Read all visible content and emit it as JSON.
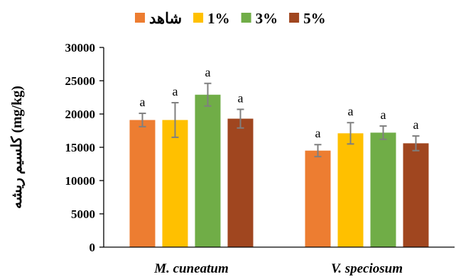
{
  "chart_data": {
    "type": "bar",
    "categories": [
      "M. cuneatum",
      "V. speciosum"
    ],
    "series": [
      {
        "name": "شاهد",
        "color": "#ED7D31",
        "values": [
          19100,
          14500
        ],
        "errors": [
          1000,
          900
        ],
        "labels": [
          "a",
          "a"
        ]
      },
      {
        "name": "1%",
        "color": "#FFC000",
        "values": [
          19100,
          17100
        ],
        "errors": [
          2600,
          1600
        ],
        "labels": [
          "a",
          "a"
        ]
      },
      {
        "name": "3%",
        "color": "#70AD47",
        "values": [
          22900,
          17200
        ],
        "errors": [
          1700,
          1000
        ],
        "labels": [
          "a",
          "a"
        ]
      },
      {
        "name": "5%",
        "color": "#A0461F",
        "values": [
          19300,
          15600
        ],
        "errors": [
          1400,
          1100
        ],
        "labels": [
          "a",
          "a"
        ]
      }
    ],
    "ylabel": "کلسیم ریشه (mg/kg)",
    "yticks": [
      0,
      5000,
      10000,
      15000,
      20000,
      25000,
      30000
    ],
    "ylim": [
      0,
      30000
    ],
    "grid": false,
    "legend_position": "top",
    "errorbar_color": "#7F7F7F"
  }
}
